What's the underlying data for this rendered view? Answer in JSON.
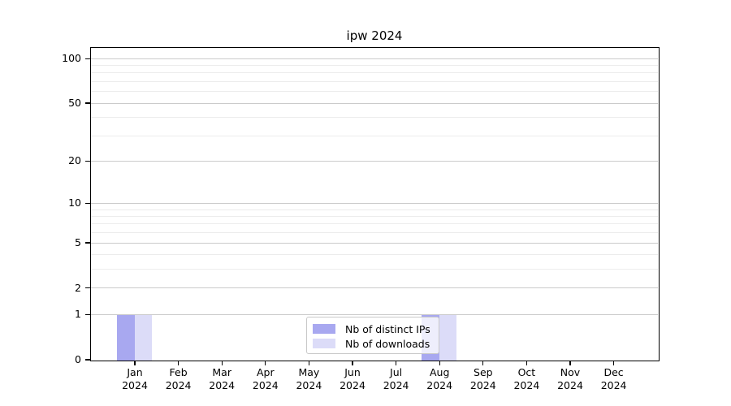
{
  "chart_data": {
    "type": "bar",
    "title": "ipw 2024",
    "categories": [
      "Jan",
      "Feb",
      "Mar",
      "Apr",
      "May",
      "Jun",
      "Jul",
      "Aug",
      "Sep",
      "Oct",
      "Nov",
      "Dec"
    ],
    "category_year": "2024",
    "series": [
      {
        "name": "Nb of distinct IPs",
        "color": "#a8a8f0",
        "values": [
          1,
          0,
          0,
          0,
          0,
          0,
          0,
          1,
          0,
          0,
          0,
          0
        ]
      },
      {
        "name": "Nb of downloads",
        "color": "#dcdcf8",
        "values": [
          1,
          0,
          0,
          0,
          0,
          0,
          0,
          1,
          0,
          0,
          0,
          0
        ]
      }
    ],
    "yscale": "log1p",
    "ylim": [
      0,
      115
    ],
    "yticks": [
      0,
      1,
      2,
      5,
      10,
      20,
      50,
      100
    ],
    "minor_yticks": [
      3,
      4,
      6,
      7,
      8,
      9,
      30,
      40,
      60,
      70,
      80,
      90
    ],
    "grid": {
      "major_color": "#cbcbcb",
      "minor_color": "#ececec"
    },
    "legend": {
      "position": "lower center inside",
      "frame_alpha": 0.8
    },
    "spine_color": "#000000",
    "background_color": "#ffffff"
  }
}
